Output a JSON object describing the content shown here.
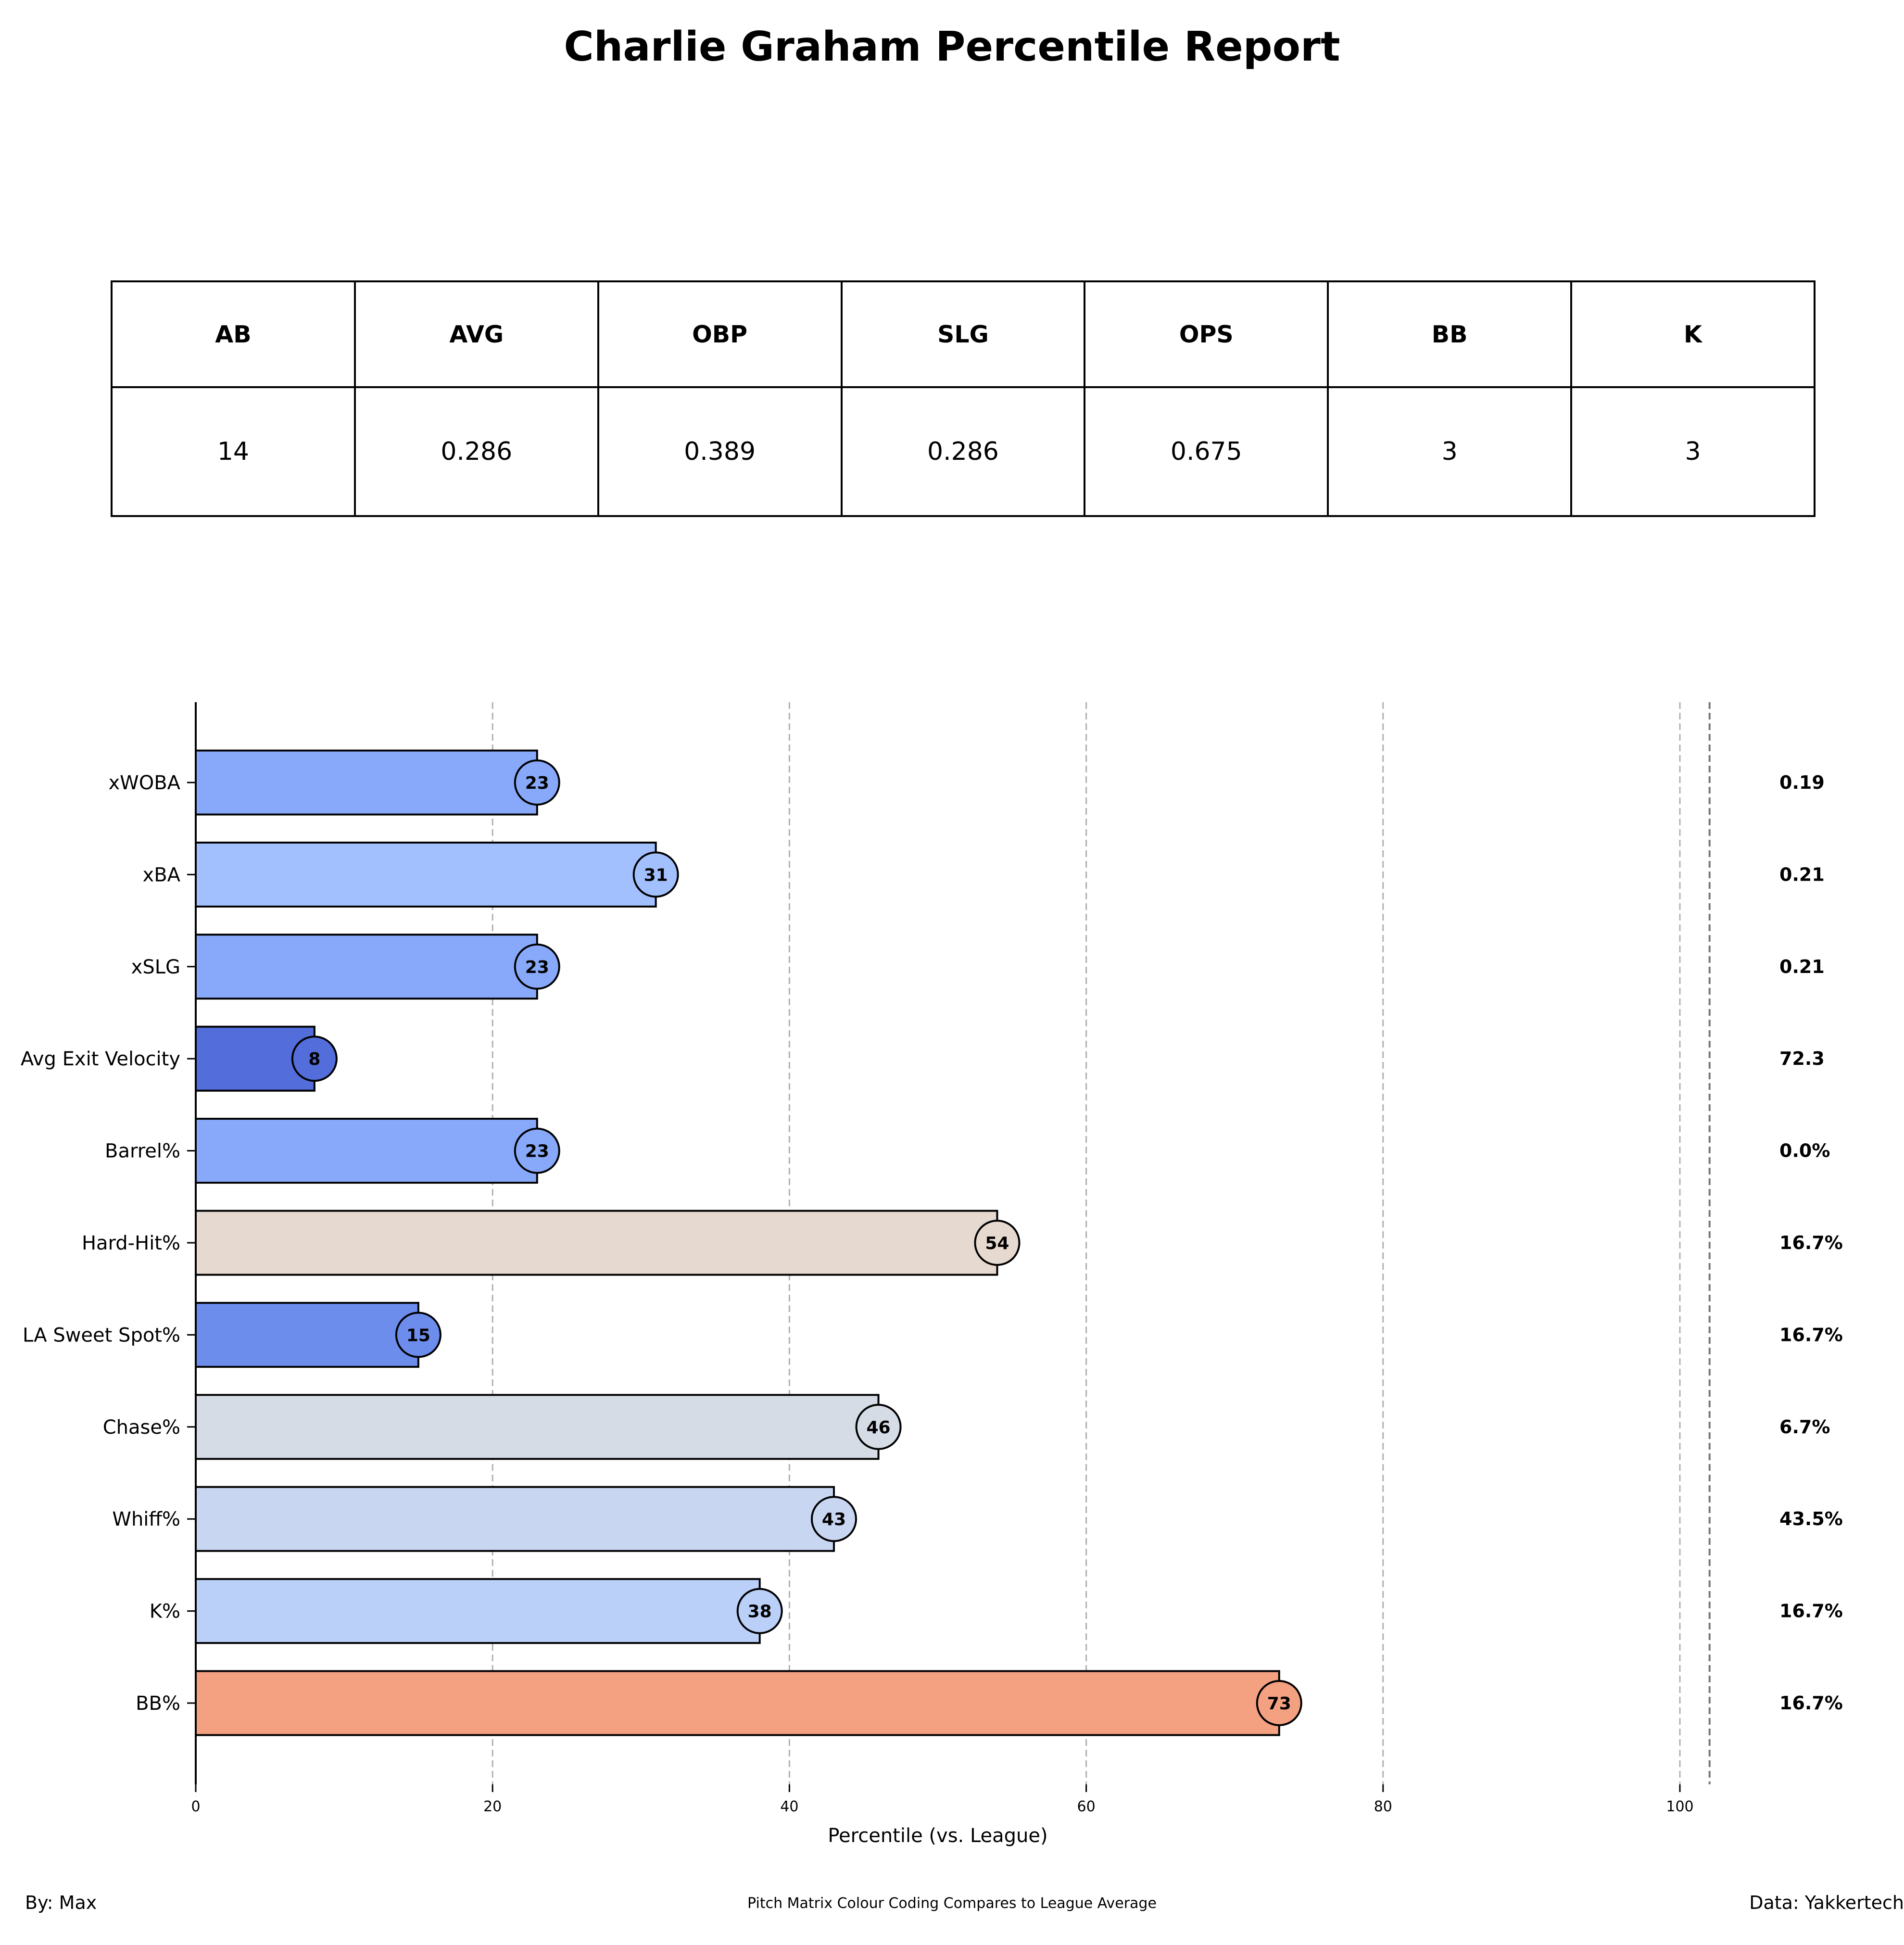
{
  "title": "Charlie Graham Percentile Report",
  "stats_table": {
    "headers": [
      "AB",
      "AVG",
      "OBP",
      "SLG",
      "OPS",
      "BB",
      "K"
    ],
    "values": [
      "14",
      "0.286",
      "0.389",
      "0.286",
      "0.675",
      "3",
      "3"
    ]
  },
  "chart_data": {
    "type": "bar",
    "orientation": "horizontal",
    "xlabel": "Percentile (vs. League)",
    "xlim": [
      0,
      103
    ],
    "xticks": [
      0,
      20,
      40,
      60,
      80,
      100
    ],
    "grid": "vertical dashed",
    "categories": [
      "xWOBA",
      "xBA",
      "xSLG",
      "Avg Exit Velocity",
      "Barrel%",
      "Hard-Hit%",
      "LA Sweet Spot%",
      "Chase%",
      "Whiff%",
      "K%",
      "BB%"
    ],
    "values": [
      23,
      31,
      23,
      8,
      23,
      54,
      15,
      46,
      43,
      38,
      73
    ],
    "value_labels": [
      "23",
      "31",
      "23",
      "8",
      "23",
      "54",
      "15",
      "46",
      "43",
      "38",
      "73"
    ],
    "raw_values": [
      "0.19",
      "0.21",
      "0.21",
      "72.3",
      "0.0%",
      "16.7%",
      "16.7%",
      "6.7%",
      "43.5%",
      "16.7%",
      "16.7%"
    ],
    "colors": [
      "#88a9fa",
      "#a3c0fe",
      "#88a9fa",
      "#536edb",
      "#88a9fa",
      "#e6d9d0",
      "#6d8ded",
      "#d6dce6",
      "#c8d6f2",
      "#bbd0f8",
      "#f3a180"
    ]
  },
  "footer": {
    "left": "By: Max",
    "center": "Pitch Matrix Colour Coding Compares to League Average",
    "right": "Data: Yakkertech"
  }
}
